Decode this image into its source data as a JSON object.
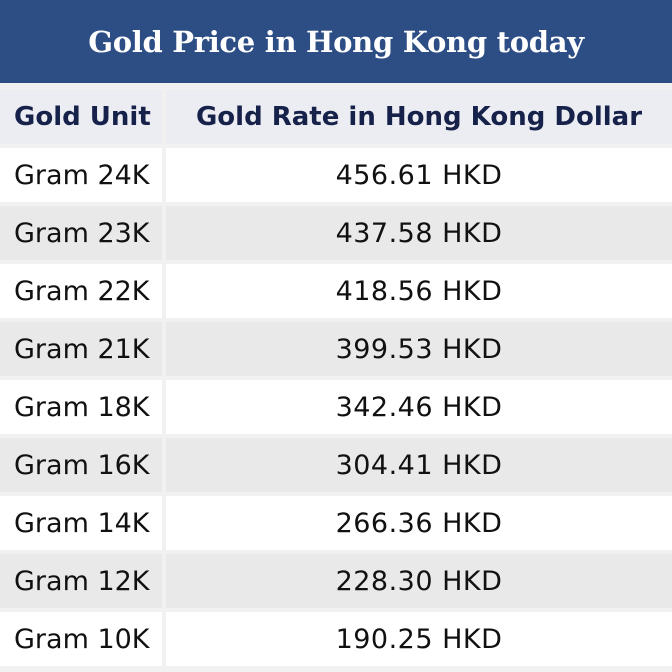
{
  "title": "Gold Price in Hong Kong today",
  "table": {
    "headers": [
      "Gold Unit",
      "Gold Rate in Hong Kong Dollar"
    ],
    "rows": [
      {
        "unit": "Gram 24K",
        "rate": "456.61 HKD"
      },
      {
        "unit": "Gram 23K",
        "rate": "437.58 HKD"
      },
      {
        "unit": "Gram 22K",
        "rate": "418.56 HKD"
      },
      {
        "unit": "Gram 21K",
        "rate": "399.53 HKD"
      },
      {
        "unit": "Gram 18K",
        "rate": "342.46 HKD"
      },
      {
        "unit": "Gram 16K",
        "rate": "304.41 HKD"
      },
      {
        "unit": "Gram 14K",
        "rate": "266.36 HKD"
      },
      {
        "unit": "Gram 12K",
        "rate": "228.30 HKD"
      },
      {
        "unit": "Gram 10K",
        "rate": "190.25 HKD"
      }
    ]
  },
  "colors": {
    "title_background": "#2d4d85",
    "header_text": "#17224a",
    "header_background": "#ecedf3",
    "row_alt_background": "#e9e9e9"
  }
}
